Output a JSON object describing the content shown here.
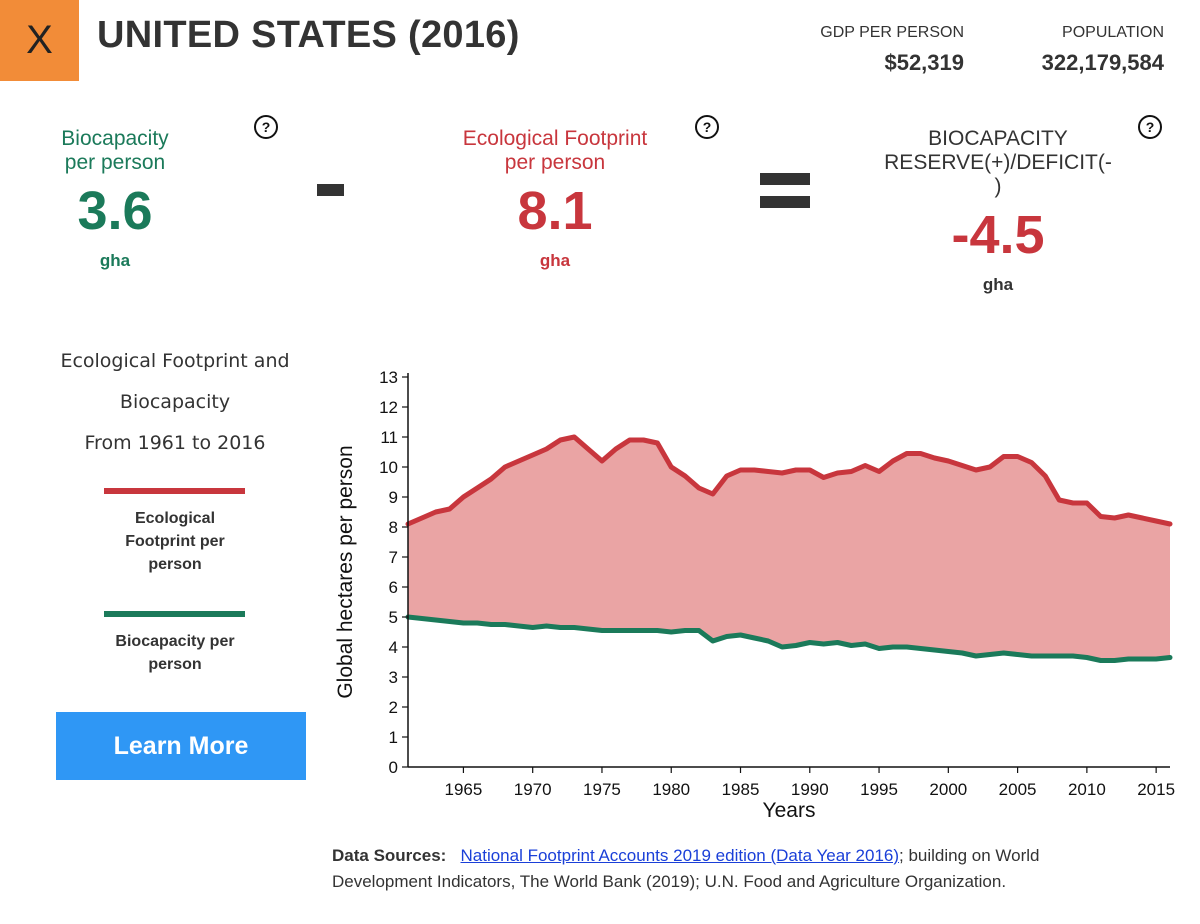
{
  "header": {
    "close_label": "X",
    "title": "UNITED STATES (2016)",
    "gdp_label": "GDP PER PERSON",
    "gdp_value": "$52,319",
    "population_label": "POPULATION",
    "population_value": "322,179,584"
  },
  "metrics": {
    "biocapacity": {
      "label_line1": "Biocapacity",
      "label_line2": "per person",
      "value": "3.6",
      "unit": "gha"
    },
    "footprint": {
      "label_line1": "Ecological Footprint",
      "label_line2": "per person",
      "value": "8.1",
      "unit": "gha"
    },
    "reserve": {
      "label_line1": "BIOCAPACITY",
      "label_line2": "RESERVE(+)/DEFICIT(-",
      "label_line3": ")",
      "value": "-4.5",
      "unit": "gha"
    },
    "help_icon": "?"
  },
  "sidebar": {
    "title_line1": "Ecological Footprint and",
    "title_line2": "Biocapacity",
    "title_line3": "From 1961 to 2016",
    "legend_footprint_line1": "Ecological",
    "legend_footprint_line2": "Footprint per",
    "legend_footprint_line3": "person",
    "legend_biocapacity_line1": "Biocapacity per",
    "legend_biocapacity_line2": "person",
    "learn_more": "Learn More"
  },
  "colors": {
    "footprint": "#c8363d",
    "footprint_fill": "#eaa4a4",
    "biocapacity": "#1b7a5a",
    "button": "#2f97f5"
  },
  "chart_data": {
    "type": "area",
    "title": "",
    "xlabel": "Years",
    "ylabel": "Global hectares per person",
    "xlim": [
      1961,
      2016
    ],
    "ylim": [
      0,
      13
    ],
    "y_ticks": [
      0,
      1,
      2,
      3,
      4,
      5,
      6,
      7,
      8,
      9,
      10,
      11,
      12,
      13
    ],
    "x_ticks": [
      1965,
      1970,
      1975,
      1980,
      1985,
      1990,
      1995,
      2000,
      2005,
      2010,
      2015
    ],
    "x": [
      1961,
      1962,
      1963,
      1964,
      1965,
      1966,
      1967,
      1968,
      1969,
      1970,
      1971,
      1972,
      1973,
      1974,
      1975,
      1976,
      1977,
      1978,
      1979,
      1980,
      1981,
      1982,
      1983,
      1984,
      1985,
      1986,
      1987,
      1988,
      1989,
      1990,
      1991,
      1992,
      1993,
      1994,
      1995,
      1996,
      1997,
      1998,
      1999,
      2000,
      2001,
      2002,
      2003,
      2004,
      2005,
      2006,
      2007,
      2008,
      2009,
      2010,
      2011,
      2012,
      2013,
      2014,
      2015,
      2016
    ],
    "series": [
      {
        "name": "Ecological Footprint per person",
        "values": [
          8.1,
          8.3,
          8.5,
          8.6,
          9.0,
          9.3,
          9.6,
          10.0,
          10.2,
          10.4,
          10.6,
          10.9,
          11.0,
          10.6,
          10.2,
          10.6,
          10.9,
          10.9,
          10.8,
          10.0,
          9.7,
          9.3,
          9.1,
          9.7,
          9.9,
          9.9,
          9.85,
          9.8,
          9.9,
          9.9,
          9.65,
          9.8,
          9.85,
          10.05,
          9.85,
          10.2,
          10.45,
          10.45,
          10.3,
          10.2,
          10.05,
          9.9,
          10.0,
          10.35,
          10.35,
          10.15,
          9.7,
          8.9,
          8.8,
          8.8,
          8.35,
          8.3,
          8.4,
          8.3,
          8.2,
          8.1
        ]
      },
      {
        "name": "Biocapacity per person",
        "values": [
          5.0,
          4.95,
          4.9,
          4.85,
          4.8,
          4.8,
          4.75,
          4.75,
          4.7,
          4.65,
          4.7,
          4.65,
          4.65,
          4.6,
          4.55,
          4.55,
          4.55,
          4.55,
          4.55,
          4.5,
          4.55,
          4.55,
          4.2,
          4.35,
          4.4,
          4.3,
          4.2,
          4.0,
          4.05,
          4.15,
          4.1,
          4.15,
          4.05,
          4.1,
          3.95,
          4.0,
          4.0,
          3.95,
          3.9,
          3.85,
          3.8,
          3.7,
          3.75,
          3.8,
          3.75,
          3.7,
          3.7,
          3.7,
          3.7,
          3.65,
          3.55,
          3.55,
          3.6,
          3.6,
          3.6,
          3.65
        ]
      }
    ]
  },
  "sources": {
    "label": "Data Sources:",
    "link_text": "National Footprint Accounts 2019 edition (Data Year 2016)",
    "rest_line1": "; building on World",
    "rest_line2": "Development Indicators, The World Bank (2019); U.N. Food and Agriculture Organization."
  }
}
